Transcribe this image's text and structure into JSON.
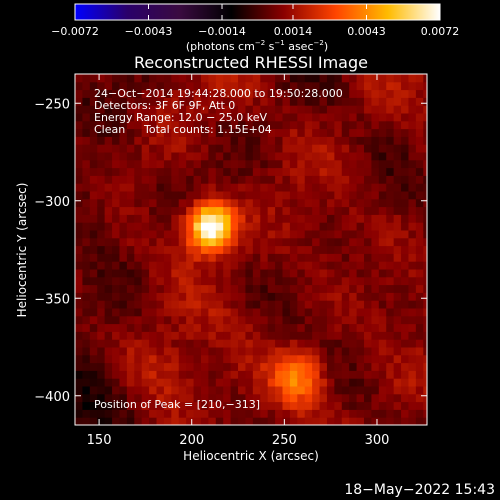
{
  "chart_data": {
    "type": "heatmap",
    "title": "Reconstructed RHESSI Image",
    "xlabel": "Heliocentric X (arcsec)",
    "ylabel": "Heliocentric Y (arcsec)",
    "xlim": [
      137,
      327
    ],
    "ylim": [
      -415,
      -235
    ],
    "x_ticks": [
      150,
      200,
      250,
      300
    ],
    "y_ticks": [
      -250,
      -300,
      -350,
      -400
    ],
    "x_tick_labels": [
      "150",
      "200",
      "250",
      "300"
    ],
    "y_tick_labels": [
      "−250",
      "−300",
      "−350",
      "−400"
    ],
    "colorbar": {
      "ticks": [
        -0.0072,
        -0.0043,
        -0.0014,
        0.0014,
        0.0043,
        0.0072
      ],
      "tick_labels": [
        "−0.0072",
        "−0.0043",
        "−0.0014",
        "0.0014",
        "0.0043",
        "0.0072"
      ],
      "range": [
        -0.0072,
        0.0072
      ],
      "label_prefix": "(photons cm",
      "label_sup1": "−2",
      "label_mid": " s",
      "label_sup2": "−1",
      "label_mid2": " asec",
      "label_sup3": "−2",
      "label_suffix": ")",
      "colors": [
        "#0000ff",
        "#2a006a",
        "#3a0a40",
        "#000000",
        "#8a0000",
        "#ff4400",
        "#ffbb00",
        "#ffffff"
      ]
    },
    "annotations": {
      "line1": "24−Oct−2014 19:44:28.000 to 19:50:28.000",
      "line2": "Detectors: 3F 6F 9F, Att 0",
      "line3": "Energy Range: 12.0 − 25.0 keV",
      "line4_method": "Clean",
      "line4_counts": "Total counts: 1.15E+04",
      "peak": "Position of Peak = [210,−313]"
    },
    "peak": {
      "x": 210,
      "y": -313
    },
    "sources": [
      {
        "x": 210,
        "y": -313,
        "amplitude": 0.0072,
        "sigma": 9
      },
      {
        "x": 258,
        "y": -390,
        "amplitude": 0.0032,
        "sigma": 10
      },
      {
        "x": 180,
        "y": -390,
        "amplitude": 0.0012,
        "sigma": 18
      }
    ],
    "background_level": 0.0015,
    "pixel_size_arcsec": 4
  },
  "footer": {
    "timestamp": "18−May−2022 15:43"
  }
}
